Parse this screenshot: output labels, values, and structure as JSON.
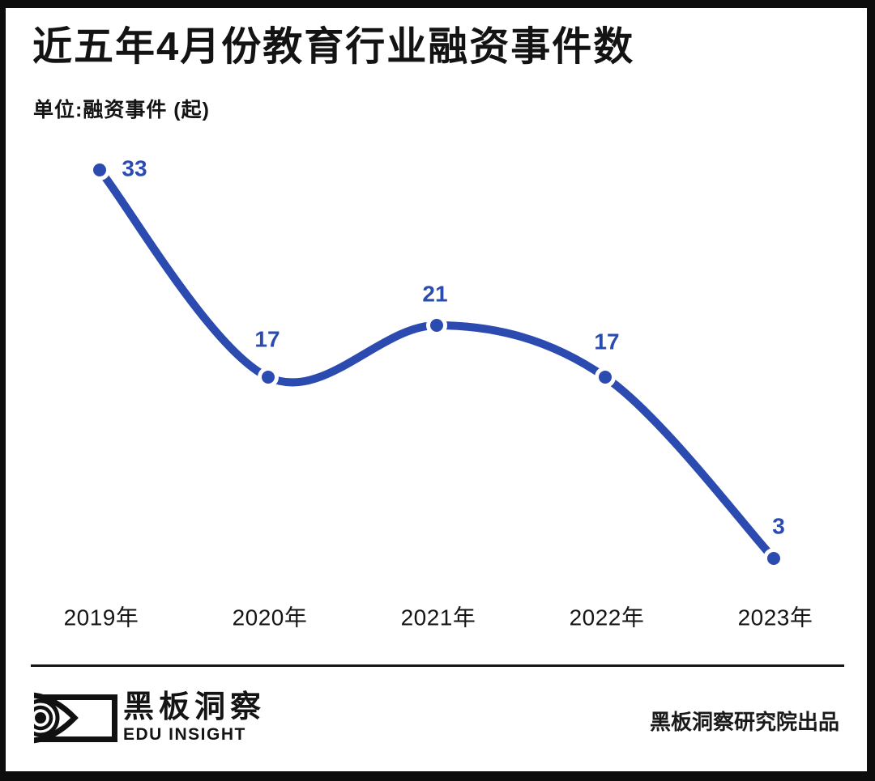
{
  "header": {
    "title": "近五年4月份教育行业融资事件数",
    "unit_label": "单位:融资事件 (起)"
  },
  "chart_data": {
    "type": "line",
    "title": "近五年4月份教育行业融资事件数",
    "ylabel": "融资事件 (起)",
    "xlabel": "",
    "categories": [
      "2019年",
      "2020年",
      "2021年",
      "2022年",
      "2023年"
    ],
    "values": [
      33,
      17,
      21,
      17,
      3
    ],
    "ylim": [
      0,
      35
    ],
    "grid": false,
    "legend": "none",
    "line_color": "#2c4bb0",
    "point_color": "#2c4bb0",
    "value_label_color": "#2c4bb0",
    "axis_label_color": "#151515"
  },
  "footer": {
    "brand_cn": "黑板洞察",
    "brand_en": "EDU INSIGHT",
    "credit": "黑板洞察研究院出品"
  },
  "colors": {
    "accent": "#2c4bb0",
    "frame": "#0d0d0d",
    "background": "#ffffff"
  }
}
